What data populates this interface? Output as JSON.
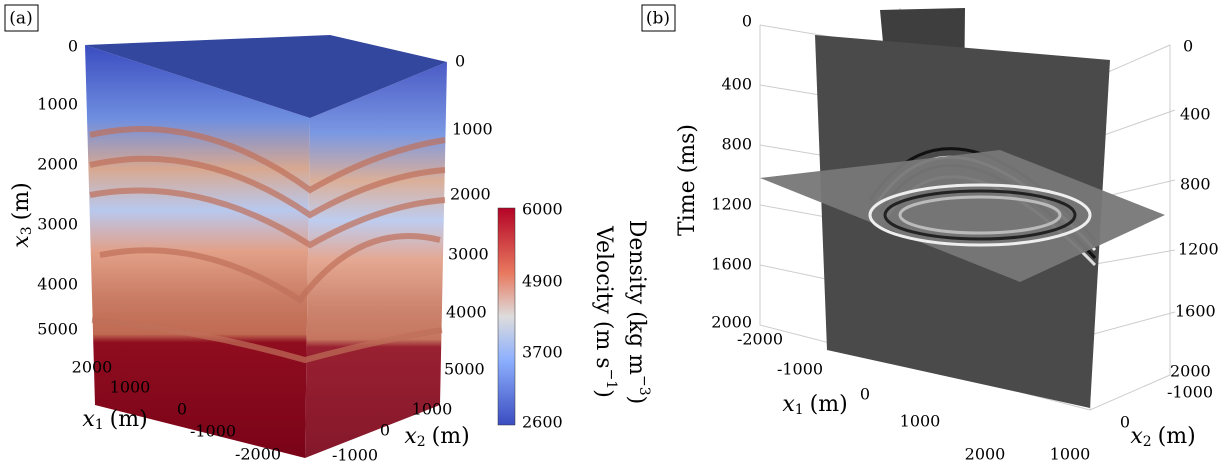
{
  "panel_a": {
    "label": "(a)",
    "x3_axis": {
      "var": "x",
      "sub": "3",
      "unit": "(m)",
      "ticks": [
        "0",
        "1000",
        "2000",
        "3000",
        "4000",
        "5000"
      ]
    },
    "x3_right_ticks": [
      "0",
      "1000",
      "2000",
      "3000",
      "4000",
      "5000"
    ],
    "x1_axis": {
      "var": "x",
      "sub": "1",
      "unit": "(m)",
      "ticks": [
        "2000",
        "1000",
        "0",
        "-1000",
        "-2000"
      ]
    },
    "x2_axis": {
      "var": "x",
      "sub": "2",
      "unit": "(m)",
      "ticks": [
        "1000",
        "0",
        "-1000"
      ]
    },
    "colorbar": {
      "ticks": [
        "6000",
        "4900",
        "3700",
        "2600"
      ],
      "title_1": {
        "text": "Density (kg m",
        "sup": "−3",
        "end": ")"
      },
      "title_2": {
        "text": "Velocity (m s",
        "sup": "−1",
        "end": ")"
      }
    }
  },
  "panel_b": {
    "label": "(b)",
    "time_axis": {
      "title": "Time (ms)",
      "ticks": [
        "0",
        "400",
        "800",
        "1200",
        "1600",
        "2000"
      ]
    },
    "time_right_ticks": [
      "0",
      "400",
      "800",
      "1200",
      "1600",
      "2000"
    ],
    "x1_axis": {
      "var": "x",
      "sub": "1",
      "unit": "(m)",
      "ticks": [
        "-2000",
        "-1000",
        "0",
        "1000",
        "2000"
      ]
    },
    "x2_axis": {
      "var": "x",
      "sub": "2",
      "unit": "(m)",
      "ticks": [
        "-1000",
        "0",
        "1000"
      ]
    }
  }
}
